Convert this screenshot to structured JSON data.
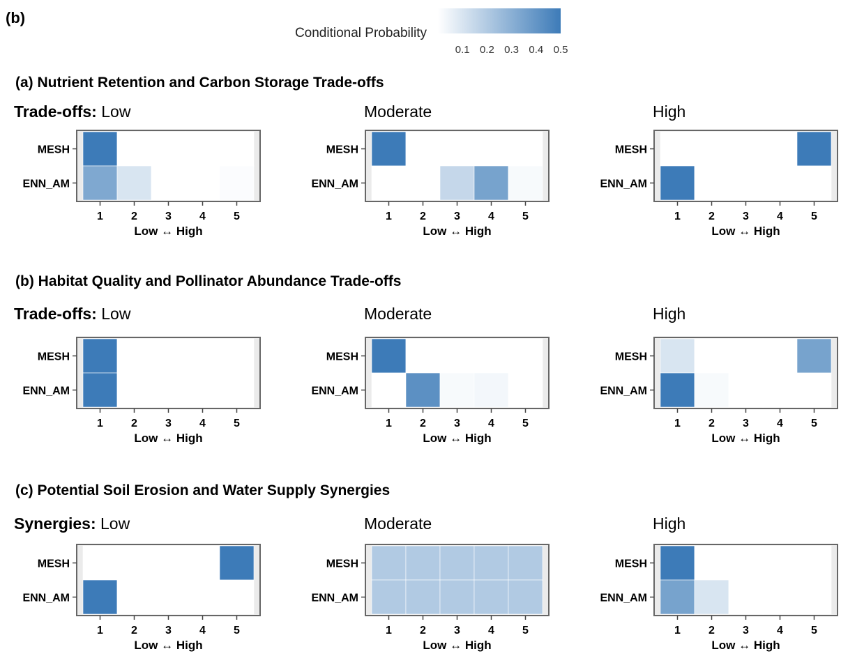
{
  "figure_label": "(b)",
  "legend": {
    "title": "Conditional Probability",
    "ticks": [
      "0.1",
      "0.2",
      "0.3",
      "0.4",
      "0.5"
    ],
    "min": 0,
    "max": 0.5,
    "color_low": "#ffffff",
    "color_high": "#3d7bb8"
  },
  "x_axis": {
    "ticks": [
      "1",
      "2",
      "3",
      "4",
      "5"
    ],
    "label": "Low ↔ High"
  },
  "y_axis": {
    "ticks": [
      "MESH",
      "ENN_AM"
    ]
  },
  "chart_data": [
    {
      "section": "(a)",
      "title": "Nutrient Retention and Carbon Storage Trade-offs",
      "group_label": "Trade-offs:",
      "panels": [
        {
          "type": "heatmap",
          "name": "Low",
          "x": [
            "1",
            "2",
            "3",
            "4",
            "5"
          ],
          "y": [
            "MESH",
            "ENN_AM"
          ],
          "values": [
            [
              0.5,
              0,
              0,
              0,
              0
            ],
            [
              0.33,
              0.1,
              0,
              0,
              0.01
            ]
          ]
        },
        {
          "type": "heatmap",
          "name": "Moderate",
          "x": [
            "1",
            "2",
            "3",
            "4",
            "5"
          ],
          "y": [
            "MESH",
            "ENN_AM"
          ],
          "values": [
            [
              0.5,
              0,
              0,
              0,
              0
            ],
            [
              0,
              0,
              0.15,
              0.35,
              0.02
            ]
          ]
        },
        {
          "type": "heatmap",
          "name": "High",
          "x": [
            "1",
            "2",
            "3",
            "4",
            "5"
          ],
          "y": [
            "MESH",
            "ENN_AM"
          ],
          "values": [
            [
              0,
              0,
              0,
              0,
              0.5
            ],
            [
              0.5,
              0,
              0,
              0,
              0
            ]
          ]
        }
      ]
    },
    {
      "section": "(b)",
      "title": "Habitat Quality and Pollinator Abundance Trade-offs",
      "group_label": "Trade-offs:",
      "panels": [
        {
          "type": "heatmap",
          "name": "Low",
          "x": [
            "1",
            "2",
            "3",
            "4",
            "5"
          ],
          "y": [
            "MESH",
            "ENN_AM"
          ],
          "values": [
            [
              0.5,
              0,
              0,
              0,
              0
            ],
            [
              0.5,
              0,
              0,
              0,
              0
            ]
          ]
        },
        {
          "type": "heatmap",
          "name": "Moderate",
          "x": [
            "1",
            "2",
            "3",
            "4",
            "5"
          ],
          "y": [
            "MESH",
            "ENN_AM"
          ],
          "values": [
            [
              0.5,
              0,
              0,
              0,
              0
            ],
            [
              0,
              0.42,
              0.02,
              0.03,
              0
            ]
          ]
        },
        {
          "type": "heatmap",
          "name": "High",
          "x": [
            "1",
            "2",
            "3",
            "4",
            "5"
          ],
          "y": [
            "MESH",
            "ENN_AM"
          ],
          "values": [
            [
              0.1,
              0,
              0,
              0,
              0.35
            ],
            [
              0.5,
              0.02,
              0,
              0,
              0
            ]
          ]
        }
      ]
    },
    {
      "section": "(c)",
      "title": "Potential Soil Erosion and Water Supply Synergies",
      "group_label": "Synergies:",
      "panels": [
        {
          "type": "heatmap",
          "name": "Low",
          "x": [
            "1",
            "2",
            "3",
            "4",
            "5"
          ],
          "y": [
            "MESH",
            "ENN_AM"
          ],
          "values": [
            [
              0,
              0,
              0,
              0,
              0.5
            ],
            [
              0.5,
              0,
              0,
              0,
              0
            ]
          ]
        },
        {
          "type": "heatmap",
          "name": "Moderate",
          "x": [
            "1",
            "2",
            "3",
            "4",
            "5"
          ],
          "y": [
            "MESH",
            "ENN_AM"
          ],
          "values": [
            [
              0.2,
              0.2,
              0.2,
              0.2,
              0.2
            ],
            [
              0.2,
              0.2,
              0.2,
              0.2,
              0.2
            ]
          ]
        },
        {
          "type": "heatmap",
          "name": "High",
          "x": [
            "1",
            "2",
            "3",
            "4",
            "5"
          ],
          "y": [
            "MESH",
            "ENN_AM"
          ],
          "values": [
            [
              0.5,
              0,
              0,
              0,
              0
            ],
            [
              0.35,
              0.1,
              0,
              0,
              0
            ]
          ]
        }
      ]
    }
  ]
}
